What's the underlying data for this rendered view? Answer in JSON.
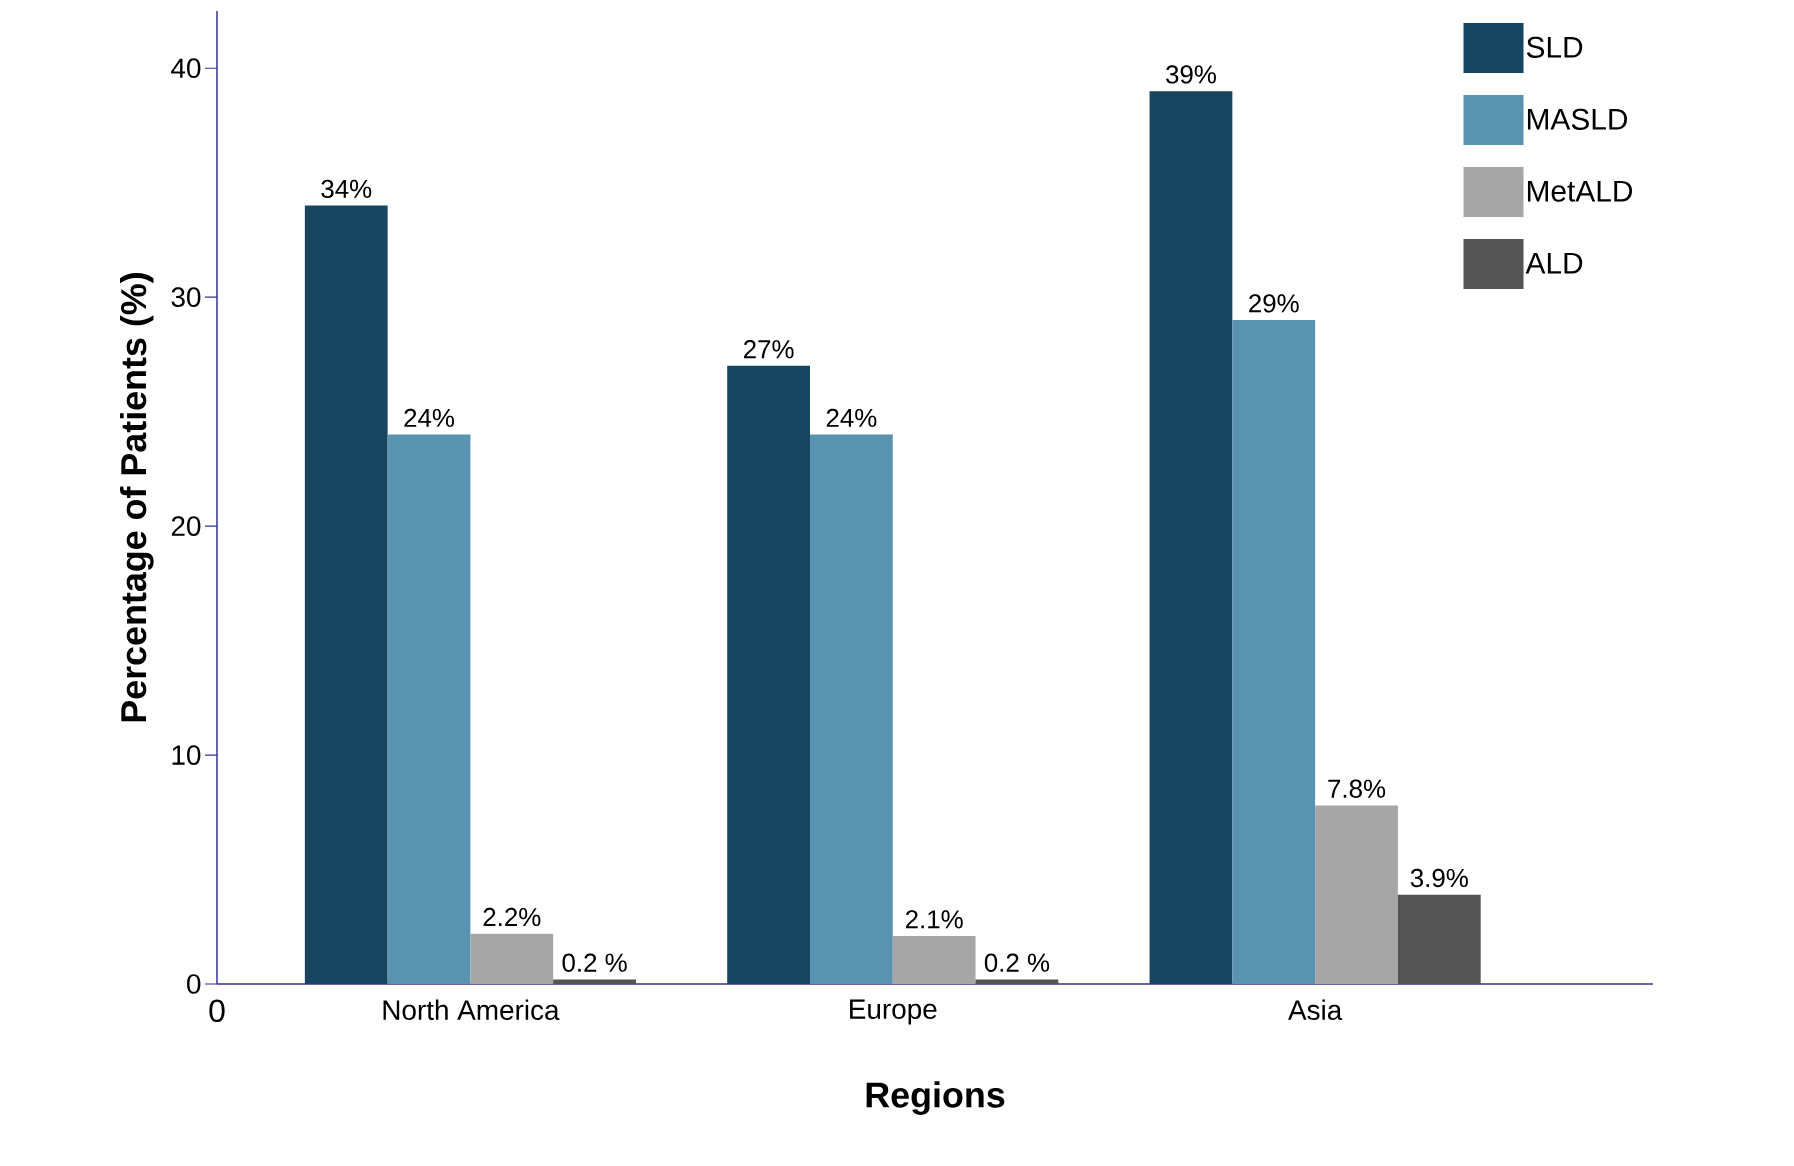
{
  "chart_data": {
    "type": "bar",
    "xlabel": "Regions",
    "ylabel": "Percentage of Patients (%)",
    "categories": [
      "North America",
      "Europe",
      "Asia"
    ],
    "series": [
      {
        "name": "SLD",
        "color": "#17445f",
        "values": [
          34,
          27,
          39
        ],
        "value_labels": [
          "34%",
          "27%",
          "39%"
        ]
      },
      {
        "name": "MASLD",
        "color": "#5a93b0",
        "values": [
          24,
          24,
          29
        ],
        "value_labels": [
          "24%",
          "24%",
          "29%"
        ]
      },
      {
        "name": "MetALD",
        "color": "#a6a6a6",
        "values": [
          2.2,
          2.1,
          7.8
        ],
        "value_labels": [
          "2.2%",
          "2.1%",
          "7.8%"
        ]
      },
      {
        "name": "ALD",
        "color": "#545454",
        "values": [
          0.2,
          0.2,
          3.9
        ],
        "value_labels": [
          "0.2 %",
          "0.2 %",
          "3.9%"
        ]
      }
    ],
    "ylim": [
      0,
      42.5
    ],
    "yticks": [
      0,
      10,
      20,
      30,
      40
    ],
    "legend": "top right",
    "annotations": [
      "0"
    ]
  }
}
